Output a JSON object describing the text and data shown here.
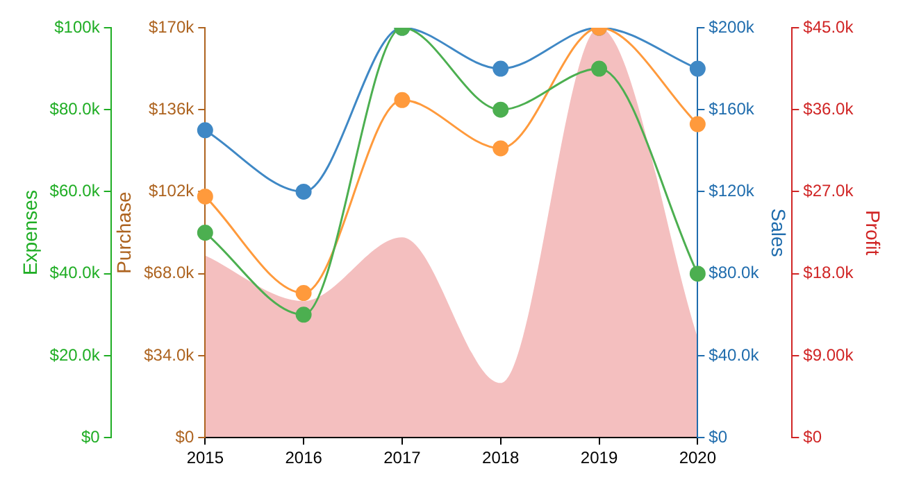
{
  "chart_data": [
    {
      "type": "line",
      "categories": [
        "2015",
        "2016",
        "2017",
        "2018",
        "2019",
        "2020"
      ],
      "series": [
        {
          "color": "#4caf50",
          "values": [
            50000,
            30000,
            100000,
            80000,
            90000,
            40000
          ]
        },
        {
          "axis": "y2",
          "color": "#ff9a3c",
          "values": [
            100000,
            60000,
            140000,
            120000,
            170000,
            130000
          ]
        },
        {
          "axis": "y3",
          "color": "#3f88c5",
          "values": [
            150000,
            120000,
            200000,
            180000,
            200000,
            180000
          ]
        }
      ],
      "ylabel": "Expenses",
      "y2label": "Purchase",
      "y3label": "Sales",
      "ylim": [
        0,
        100000
      ],
      "yticks": [
        {
          "value": 0,
          "label": "$0"
        },
        {
          "value": 20000,
          "label": "$20.0k"
        },
        {
          "value": 40000,
          "label": "$40.0k"
        },
        {
          "value": 60000,
          "label": "$60.0k"
        },
        {
          "value": 80000,
          "label": "$80.0k"
        },
        {
          "value": 100000,
          "label": "$100k"
        }
      ],
      "y2lim": [
        0,
        170000
      ],
      "y2ticks": [
        {
          "value": 0,
          "label": "$0"
        },
        {
          "value": 34000,
          "label": "$34.0k"
        },
        {
          "value": 68000,
          "label": "$68.0k"
        },
        {
          "value": 102000,
          "label": "$102k"
        },
        {
          "value": 136000,
          "label": "$136k"
        },
        {
          "value": 170000,
          "label": "$170k"
        }
      ],
      "y3lim": [
        0,
        200000
      ],
      "y3ticks": [
        {
          "value": 0,
          "label": "$0"
        },
        {
          "value": 40000,
          "label": "$40.0k"
        },
        {
          "value": 80000,
          "label": "$80.0k"
        },
        {
          "value": 120000,
          "label": "$120k"
        },
        {
          "value": 160000,
          "label": "$160k"
        },
        {
          "value": 200000,
          "label": "$200k"
        }
      ],
      "marker": "circle",
      "grid": false,
      "legend": false
    },
    {
      "type": "area",
      "categories": [
        "2015",
        "2016",
        "2017",
        "2018",
        "2019",
        "2020"
      ],
      "tick_labels": "y",
      "series": [
        {
          "color": "#f4bfbf",
          "values": [
            20000,
            15000,
            22000,
            6000,
            45000,
            11000
          ]
        }
      ],
      "ylabel": "Profit",
      "ylim": [
        0,
        45000
      ],
      "yticks": [
        {
          "value": 0,
          "label": "$0"
        },
        {
          "value": 9000,
          "label": "$9.00k"
        },
        {
          "value": 18000,
          "label": "$18.0k"
        },
        {
          "value": 27000,
          "label": "$27.0k"
        },
        {
          "value": 36000,
          "label": "$36.0k"
        },
        {
          "value": 45000,
          "label": "$45.0k"
        }
      ],
      "grid": false,
      "legend": false
    }
  ]
}
